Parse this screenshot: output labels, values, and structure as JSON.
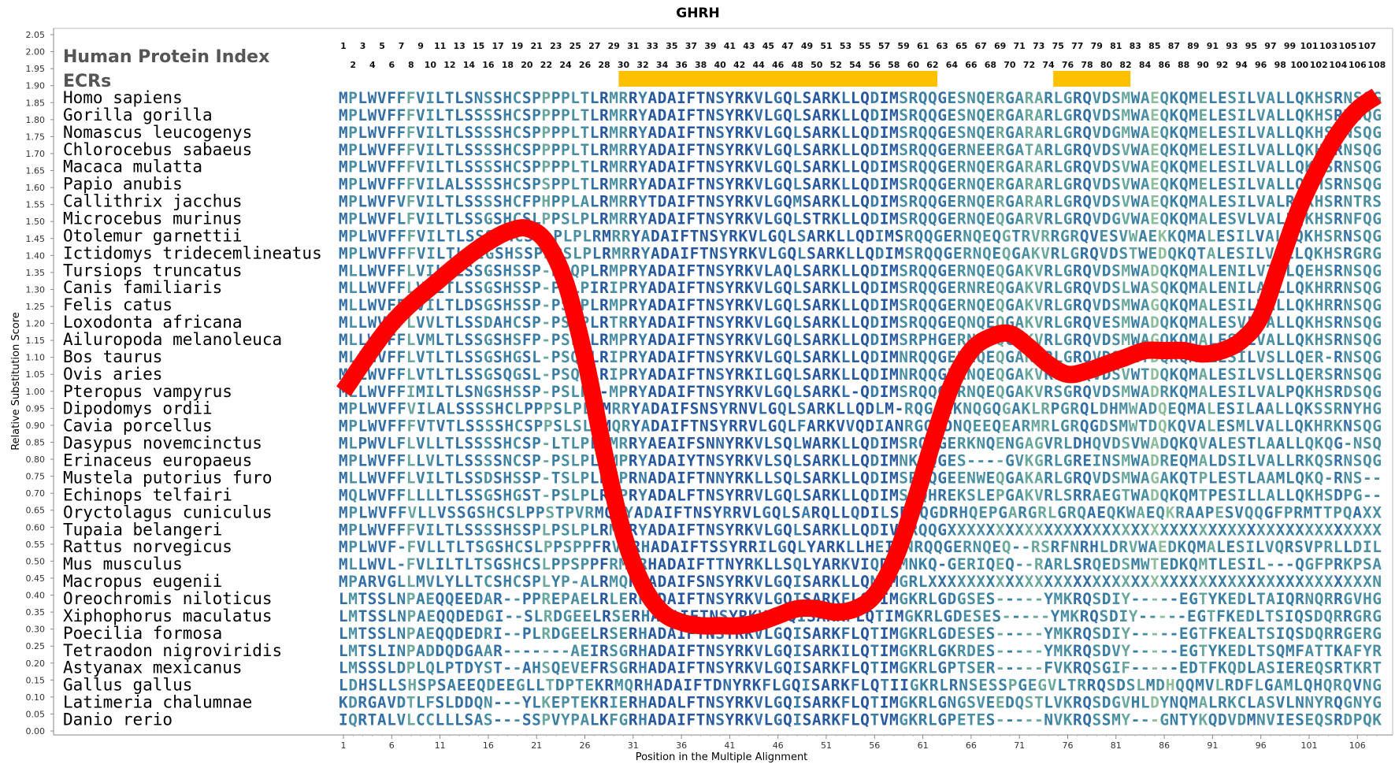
{
  "chart_data": {
    "type": "line",
    "title": "GHRH",
    "xlabel": "Position in the Multiple Alignment",
    "ylabel": "Relative Substitution Score",
    "xlim": [
      1,
      108
    ],
    "ylim": [
      0,
      2.05
    ],
    "y_ticks": [
      "0.00",
      "0.05",
      "0.10",
      "0.15",
      "0.20",
      "0.25",
      "0.30",
      "0.35",
      "0.40",
      "0.45",
      "0.50",
      "0.55",
      "0.60",
      "0.65",
      "0.70",
      "0.75",
      "0.80",
      "0.85",
      "0.90",
      "0.95",
      "1.00",
      "1.05",
      "1.10",
      "1.15",
      "1.20",
      "1.25",
      "1.30",
      "1.35",
      "1.40",
      "1.45",
      "1.50",
      "1.55",
      "1.60",
      "1.65",
      "1.70",
      "1.75",
      "1.80",
      "1.85",
      "1.90",
      "1.95",
      "2.00",
      "2.05"
    ],
    "x_ticks": [
      "1",
      "6",
      "11",
      "16",
      "21",
      "26",
      "31",
      "36",
      "41",
      "46",
      "51",
      "56",
      "61",
      "66",
      "71",
      "76",
      "81",
      "86",
      "91",
      "96",
      "101",
      "106"
    ],
    "grid": false,
    "legend": "none",
    "header_label": "Human Protein Index",
    "ecr_label": "ECRs",
    "position_index_odd": [
      "1",
      "3",
      "5",
      "7",
      "9",
      "11",
      "13",
      "15",
      "17",
      "19",
      "21",
      "23",
      "25",
      "27",
      "29",
      "31",
      "33",
      "35",
      "37",
      "39",
      "41",
      "43",
      "45",
      "47",
      "49",
      "51",
      "53",
      "55",
      "57",
      "59",
      "61",
      "63",
      "65",
      "67",
      "69",
      "71",
      "73",
      "75",
      "77",
      "79",
      "81",
      "83",
      "85",
      "87",
      "89",
      "91",
      "93",
      "95",
      "97",
      "99",
      "101",
      "103",
      "105",
      "107"
    ],
    "position_index_even": [
      "2",
      "4",
      "6",
      "8",
      "10",
      "12",
      "14",
      "16",
      "18",
      "20",
      "22",
      "24",
      "26",
      "28",
      "30",
      "32",
      "34",
      "36",
      "38",
      "40",
      "42",
      "44",
      "46",
      "48",
      "50",
      "52",
      "54",
      "56",
      "58",
      "60",
      "62",
      "64",
      "66",
      "68",
      "70",
      "72",
      "74",
      "76",
      "78",
      "80",
      "82",
      "84",
      "86",
      "88",
      "90",
      "92",
      "94",
      "96",
      "98",
      "100",
      "102",
      "104",
      "106",
      "108"
    ],
    "ecr_regions": [
      [
        30,
        62
      ],
      [
        75,
        82
      ]
    ],
    "ecr_color": "#FFC000",
    "line_color": "#FF0000",
    "series": [
      {
        "x": [
          1,
          6,
          11,
          14,
          16,
          18,
          20,
          22,
          24,
          26,
          28,
          30,
          32,
          34,
          36,
          38,
          40,
          42,
          44,
          46,
          48,
          50,
          52,
          54,
          56,
          58,
          60,
          62,
          64,
          66,
          68,
          70,
          72,
          74,
          76,
          78,
          80,
          82,
          84,
          86,
          88,
          90,
          92,
          94,
          96,
          98,
          100,
          102,
          104,
          106,
          108
        ],
        "y": [
          1.0,
          1.2,
          1.33,
          1.4,
          1.44,
          1.47,
          1.48,
          1.44,
          1.32,
          1.1,
          0.82,
          0.58,
          0.43,
          0.35,
          0.32,
          0.31,
          0.31,
          0.31,
          0.32,
          0.34,
          0.36,
          0.36,
          0.35,
          0.36,
          0.4,
          0.5,
          0.66,
          0.85,
          1.02,
          1.12,
          1.16,
          1.17,
          1.13,
          1.08,
          1.05,
          1.06,
          1.08,
          1.1,
          1.12,
          1.12,
          1.12,
          1.11,
          1.12,
          1.15,
          1.22,
          1.38,
          1.54,
          1.66,
          1.76,
          1.83,
          1.87
        ]
      }
    ],
    "alignment": [
      {
        "species": "Homo sapiens",
        "seq": "MPLWVFFFVILTLSNSSHCSPPPPLTLRMRRYADAIFTNSYRKVLGQLSARKLLQDIMSRQQGESNQERGARARLGRQVDSMWAEQKQMELESILVALLQKHSRNSQG"
      },
      {
        "species": "Gorilla gorilla",
        "seq": "MPLWVFFFVILTLSSSSHCSPPPPLTLRMRRYADAIFTNSYRKVLGQLSARKLLQDIMSRQQGESNQERGARARLGRQVDSMWAEQKQMELESILVALLQKHSRNSQG"
      },
      {
        "species": "Nomascus leucogenys",
        "seq": "MPLWVFFFVILTLSSSSHCSPPPPLTLRMRRYADAIFTNSYRKVLGQLSARKLLQDIMSRQQGESNQERGARARLGRQVDGMWAEQKQMELESILVALLQKHSRNSQG"
      },
      {
        "species": "Chlorocebus sabaeus",
        "seq": "MPLWVFFFVILTLSSSSHCSPPPPLTLRMRRYADAIFTNSYRKVLGQLSARKLLQDIMSRQQGERNEERGATARLGRQVDSVWAEQKQMELESILVALLQKHSRNSQG"
      },
      {
        "species": "Macaca mulatta",
        "seq": "MPLWVFFFVILTLSSSSHCSPPPPLTLRMRRYADAIFTNSYRKVLGQLSARKLLQDIMSRQQGERNQERGARARLGRQVDSVWAEQKQMELESILVALLQKHSRNSQG"
      },
      {
        "species": "Papio anubis",
        "seq": "MPLWVFFFVILALSSSSHCSPSPPLTLRMRRYADAIFTNSYRKVLGQLSARKLLQDIMSRQQGERNQERGARARLGRQVDSVWAEQKQMELESILVALLQKHSRNSQG"
      },
      {
        "species": "Callithrix jacchus",
        "seq": "MPLWVFVFVILTLSSSSHCFPHPPLALRMRRYTDAIFTNSYRKVLGQMSARKLLQDIMSRQQGERNQERGARARLGRQVDSVWAEQKQMALESILVALRQKHSRNTRS"
      },
      {
        "species": "Microcebus murinus",
        "seq": "MPLWVFLFVILTLSSGSHCSLPPSLPLRMRRYADAIFTNSYRKVLGQLSTRKLLQDIMSRQQGERNQEQGARVRLGRQVDGVWAEQKQMALESVLVALLQKHSRNFQG"
      },
      {
        "species": "Otolemur garnettii",
        "seq": "MPLWVFFFVILTLSSSSHCSPLPLPLRMRRYADAIFTNSYRKVLGQLSARKLLQDIMSRQQGERNQEQGTRVRRGRQVESVWAEKKQMALESILVALLQKHSRNSQG"
      },
      {
        "species": "Ictidomys tridecemlineatus",
        "seq": "MPLWVFFFVILTLSIGSHSSPSPSLPLRMRRYADAIFTNSYRKVLGQLSARKLLQDIMSRQQGERNQEQGAKVRLGRQVDSTWEDQKQTALESILVALLQKHSRGRG"
      },
      {
        "species": "Tursiops truncatus",
        "seq": "MLLWVFFLVILTLSSGSHSSP-PSQPLRMPRYADAIFTNSYRKVLAQLSARKLLQDIMSRQQGERNQEQGAKVRLGRQVDSMWADQKQMALENILVTLLQEHSRNSQG"
      },
      {
        "species": "Canis familiaris",
        "seq": "MLLWVFFLVILTLSSGSHSSP-PSLPIRIPRYADAIFTNSYRKVLGQLSARKLLQDIMSRQQGERNREQGAKVRLGRQVDSLWASQKQMALENILASLLQKHRRNSQG"
      },
      {
        "species": "Felis catus",
        "seq": "MLLWVFFLVILTLDSGSHSSP-PSLPLRMPRYADAIFTNSYRKVLGQLSARKLLQDIMSRQQGERNQEQGAKVRLGRQVDSMWAGQKQMALESILVALLQKHRRNSQG"
      },
      {
        "species": "Loxodonta africana",
        "seq": "MLLWVFFLVVLTLSSDAHCSP-PSLPLRTRRYADAIFTNSYRKVLGQLSARKLLQDIMSRQQGEQNQEQGAKVRLGRQVESMWADQKQMALESVLVALLQKHSRNSQG"
      },
      {
        "species": "Ailuropoda melanoleuca",
        "seq": "MLLWVFFLVMLTLSSGSHSFP-PSLPLRMPRYADAIFTNSYRKVLGQLSARKLLQDIMSRPHGERNREQGAKVRLGRQVDSMWAGQKQMALESILVALLQKHSRNSQG"
      },
      {
        "species": "Bos taurus",
        "seq": "MLLWVFFLVTLTLSSGSHGSL-PSQPLRIPRYADAIFTNSYRKVLGQLSARKLLQDIMNRQQGERNQEQGAKVRLGRQVDSVWTDQKQMALESILVSLLQER-RNSQG"
      },
      {
        "species": "Ovis aries",
        "seq": "MLLWVFFLVTLTLSSGSQGSL-PSQPLRIPRYADAIFTNSYRKILGQLSARKLLQDIMNRQQGERNQEQGAKVRLGRQVDSVWTDQKQMALESILVSLLQERSRNSQG"
      },
      {
        "species": "Pteropus vampyrus",
        "seq": "MLLWVFFIMILTLSNGSHSSP-PSLPL-MPRYADAIFTNSYRKVLGQLSARKL-QDIMSRQQGERNQEQGAKVRSGRQVDSMWADRKQMALESILVALPQKHSRDSQG"
      },
      {
        "species": "Dipodomys ordii",
        "seq": "MPLWVFFVILALSSSSHCLPPPSLPLRMRRYADAIFSNSYRNVLGQLSARKLLQDLM-RQGAEKNQGQGAKLRPGRQLDHMWADQEQMALESILAALLQKSSRNYHG"
      },
      {
        "species": "Cavia porcellus",
        "seq": "MPLWVFFFVTVTLSSSSHCSPPSLSLRMQRYADAIFTNSYRRVLGQLFARKVVQDIANRGQEDNQEEQEARMRLGRQGDSMWTDQKQVALESMLVALLQKHRKNSQG"
      },
      {
        "species": "Dasypus novemcinctus",
        "seq": "MLPWVLFLVLLTLSSSSHCSP-LTLPLRMRRYAEAIFSNNYRKVLSQLWARKLLQDIMSRQQGERKNQENGAGVRLDHQVDSVWADQKQVALESTLAALLQKQG-NSQG"
      },
      {
        "species": "Erinaceus europaeus",
        "seq": "MPLWVFFLLVLTLSSSSNCSP-PSLPLRMPRYADAIYTNSYRKVLSQLSARKLLQDIMNKQQGES----GVKGRLGREINSMWADREQMALDSILVALLRKQSRNSQG"
      },
      {
        "species": "Mustela putorius furo",
        "seq": "MLLWVFFLVILTLSSDSHSSP-TSLPLRVPRNADAIFTNNYRKLLSQLSARKLLQDIMSRQQGEENWEQGAKARLGRQVDSMWAGAKQTPLESTLAAMLQKQ-RNS--"
      },
      {
        "species": "Echinops telfairi",
        "seq": "MQLWVFFLLLLTLSSGSHGST-PSLPLRMPRYADALFTNSYRRVLGQLSARKLLQDIMSRQHREKSLEPGAKVRLSRRAEGTWADQKQMTPESILLALLQKHSDPG--"
      },
      {
        "species": "Oryctolagus cuniculus",
        "seq": "MPLWVFFVLLVSSGSHCSLPPSTPVRMQRYADAIFTNSYRRVLGQLSARQLLQDILSRQQGDRHQEPGARGRLGRQAEQKWAEQKRAAPESVQQGFPRMTTPQAXX"
      },
      {
        "species": "Tupaia belangeri",
        "seq": "MPLWVFFFVILTLSSSSHSSPLPSLPLRMRRYADAIFTNSYRKVLGQLSARKLLQDIVSRQQGXXXXXXXXXXXXXXXXXXXXXXXXXXXXXXXXXXXXXXXXXXXXX"
      },
      {
        "species": "Rattus norvegicus",
        "seq": "MPLWVF-FVLLTLTSGSHCSLPPSPPFRVRRHADAIFTSSYRRILGQLYARKLLHEIMNRQQGERNQEQ--RSRFNRHLDRVWAEDKQMALESILVQRSVPRLLDIL"
      },
      {
        "species": "Mus musculus",
        "seq": "MLLWVL-FVLILTLTSGSHCSLPPSPPFRMQRHADAIFTTNYRKLLSQLYARKVIQDIMNKQ-GERIQEQ--RARLSRQEDSMWTEDKQMTLESIL---QGFPRKPSAD"
      },
      {
        "species": "Macropus eugenii",
        "seq": "MPARVGLLMVLYLLTCSHCSPLYP-ALRMQRHADAIFSNSYRKVLGQISARKLLQNIMGRLXXXXXXXXXXXXXXXXXXXXXXXXXXXXXXXXXXXXXXXXXXXXXXNSQR"
      },
      {
        "species": "Oreochromis niloticus",
        "seq": "LMTSSLNPAEQQEEDAR--PPREPAELRLERHADAIFTNSYRKVLGQISARKFLQTIMGKRLGDGSES-----YMKRQSDIY-----EGTYKEDLTAIQRNQRRGVHG"
      },
      {
        "species": "Xiphophorus maculatus",
        "seq": "LMTSSLNPAEQQDEDGI--SLRDGEELRSERHADAIFTNSYRKVLGQISARKFLQTIMGKRLGDESES-----YMKRQSDIY-----EGTFKEDLTSIQSDQRRGRG"
      },
      {
        "species": "Poecilia formosa",
        "seq": "LMTSSLNPAEQQDEDRI--PLRDGEELRSERHADAIFTNSYRKVLGQISARKFLQTIMGKRLGDESES-----YMKRQSDIY-----EGTFKEALTSIQSDQRRGERG"
      },
      {
        "species": "Tetraodon nigroviridis",
        "seq": "LMTSLINPADDQDGAAR-------AEIRSGRHADAIFTNSYRKVLGQISARKILQTIMGKRLGKRDES-----YMKRQSDVY-----EGTYKEDLTSQMFATTKAFYR"
      },
      {
        "species": "Astyanax mexicanus",
        "seq": "LMSSSLDPLQLPTDYST--AHSQEVEFRSGRHADAIFTNSYRKVLGQISARKFLQTIMGKRLGPTSER-----FVKRQSGIF-----EDTFKQDLASIEREQSRTKRT"
      },
      {
        "species": "Gallus gallus",
        "seq": "LDHSLLSHSPSAEEQDEEGLLTDPTEKRMQRHADAIFTDNYRKFLGQISARKFLQTIIGKRLRNSESSPGEGVLTRRQSDSLMDHQQMVLRDFLGAMLQHQRQVNG"
      },
      {
        "species": "Latimeria chalumnae",
        "seq": "KDRGAVDTLFSLDDQN---YLKEPTEKRIERHADALFTNSYRKVLGQISARKFLQTIMGKRLGNGSVEEDQSTLVKRQSDGVHLDYNQMALRKCLASVLNNYRQGNYG"
      },
      {
        "species": "Danio rerio",
        "seq": "IQRTALVLCCLLLSAS---SSPVYPALKFGRHADAIFTNSYRKVLGQISARKFLQTVMGKRLGPETES-----NVKRQSSMY---GNTYKQDVDMNVIESEQSRDPQK"
      }
    ]
  }
}
